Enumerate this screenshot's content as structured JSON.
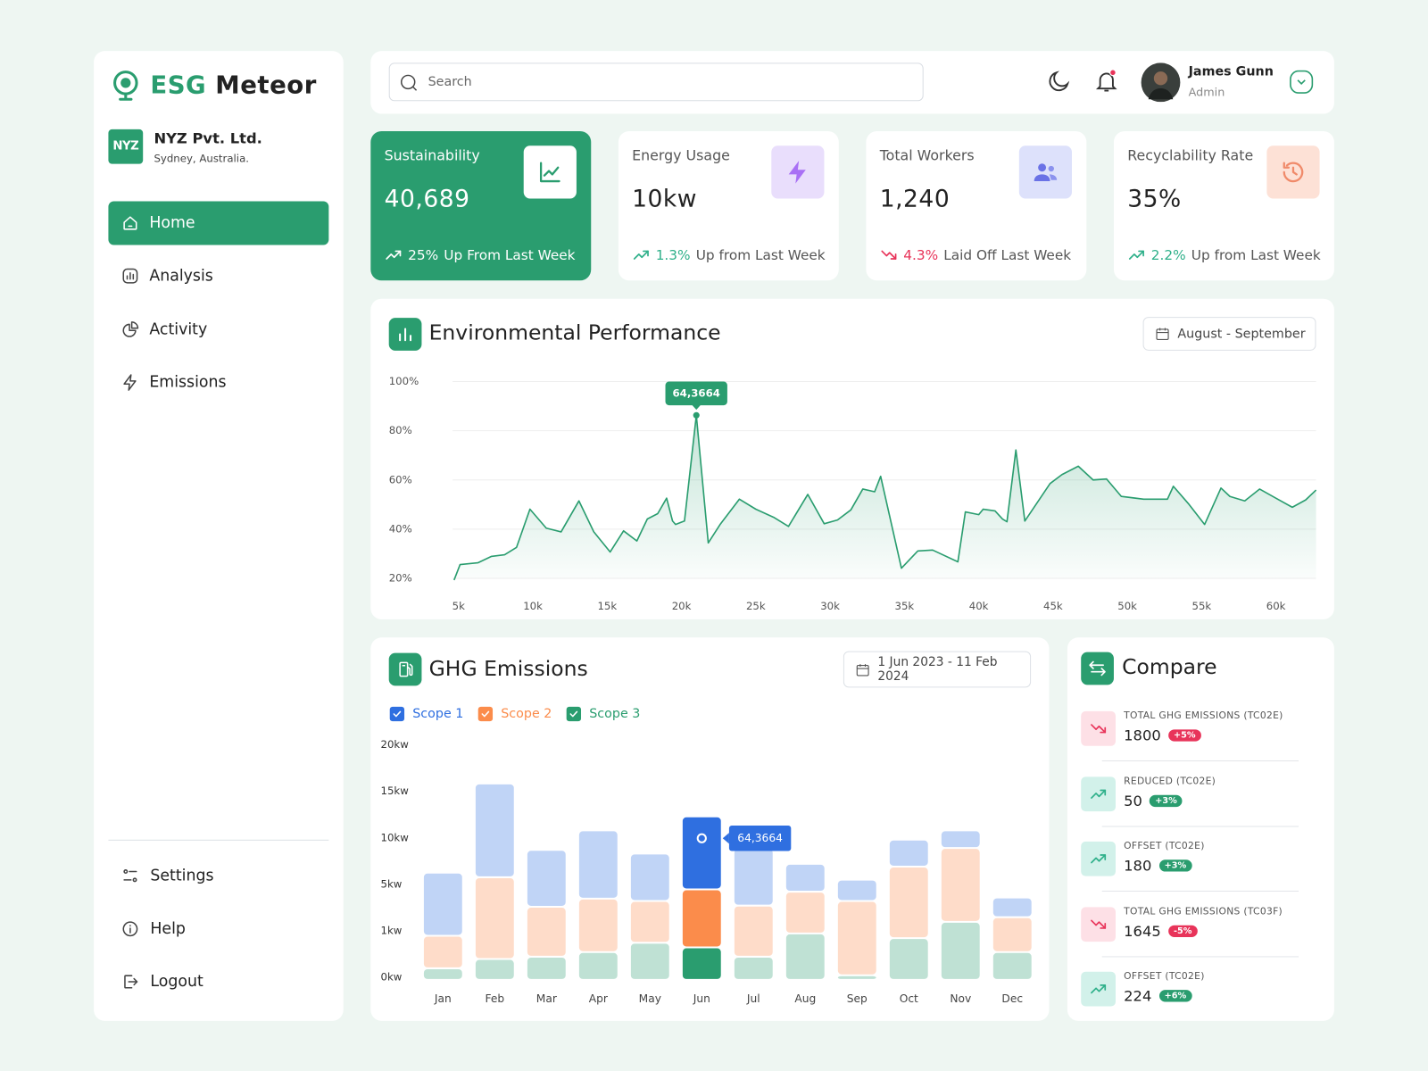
{
  "brand": {
    "accent": "ESG",
    "name": "Meteor"
  },
  "company": {
    "logo": "NYZ",
    "name": "NYZ Pvt. Ltd.",
    "location": "Sydney, Australia."
  },
  "nav": {
    "active": 0,
    "items": [
      "Home",
      "Analysis",
      "Activity",
      "Emissions"
    ]
  },
  "footer_nav": [
    "Settings",
    "Help",
    "Logout"
  ],
  "header": {
    "search": "Search",
    "user": {
      "name": "James Gunn",
      "role": "Admin"
    }
  },
  "stats": {
    "active": 0,
    "items": [
      {
        "title": "Sustainability",
        "value": "40,689",
        "change": "25%",
        "note": "Up From Last Week",
        "trend": "up"
      },
      {
        "title": "Energy Usage",
        "value": "10kw",
        "change": "1.3%",
        "note": "Up from Last Week",
        "trend": "up"
      },
      {
        "title": "Total Workers",
        "value": "1,240",
        "change": "4.3%",
        "note": "Laid Off Last Week",
        "trend": "down"
      },
      {
        "title": "Recyclability Rate",
        "value": "35%",
        "change": "2.2%",
        "note": "Up from Last Week",
        "trend": "up"
      }
    ]
  },
  "chart_data": [
    {
      "type": "line",
      "title": "Environmental Performance",
      "date_range": "August - September",
      "color": "#2a9d6f",
      "area": true,
      "grid": true,
      "x": [
        4700,
        5100,
        6300,
        7200,
        8100,
        8900,
        9800,
        10900,
        11900,
        13100,
        14100,
        15200,
        16100,
        17000,
        17700,
        18400,
        19000,
        19400,
        19600,
        20200,
        21000,
        21800,
        22600,
        23900,
        25000,
        26200,
        27200,
        28500,
        29600,
        30500,
        31400,
        32200,
        33000,
        33400,
        34800,
        35900,
        36900,
        38600,
        39100,
        40000,
        40300,
        41100,
        41600,
        41900,
        42500,
        43100,
        44800,
        45600,
        46700,
        47700,
        48600,
        49600,
        51100,
        52700,
        53100,
        54100,
        55200,
        56300,
        56900,
        57900,
        58900,
        60000,
        61100,
        62000,
        62700
      ],
      "values": [
        19.3,
        25.6,
        26.3,
        28.9,
        29.6,
        32.6,
        48.1,
        40.4,
        38.9,
        51.5,
        38.9,
        30.7,
        39.3,
        35.2,
        44.1,
        46.3,
        52.6,
        43.3,
        41.9,
        43.3,
        86.3,
        34.4,
        41.9,
        52.2,
        48.1,
        44.8,
        41.1,
        54.1,
        42.2,
        43.7,
        47.8,
        56.3,
        55.2,
        61.5,
        24.1,
        31.1,
        31.5,
        26.7,
        47.0,
        45.9,
        48.1,
        47.4,
        44.1,
        43.0,
        72.2,
        43.3,
        58.5,
        62.2,
        65.6,
        60.0,
        60.4,
        53.3,
        52.2,
        52.2,
        57.4,
        50.4,
        41.9,
        56.7,
        53.3,
        51.5,
        56.3,
        52.6,
        48.9,
        51.9,
        55.9
      ],
      "xlim": [
        4600,
        63000
      ],
      "xticks": [
        {
          "value": 5000,
          "label": "5k"
        },
        {
          "value": 10000,
          "label": "10k"
        },
        {
          "value": 15000,
          "label": "15k"
        },
        {
          "value": 20000,
          "label": "20k"
        },
        {
          "value": 25000,
          "label": "25k"
        },
        {
          "value": 30000,
          "label": "30k"
        },
        {
          "value": 35000,
          "label": "35k"
        },
        {
          "value": 40000,
          "label": "40k"
        },
        {
          "value": 45000,
          "label": "45k"
        },
        {
          "value": 50000,
          "label": "50k"
        },
        {
          "value": 55000,
          "label": "55k"
        },
        {
          "value": 60000,
          "label": "60k"
        }
      ],
      "ylim": [
        20,
        100
      ],
      "yticks": [
        {
          "value": 20,
          "label": "20%"
        },
        {
          "value": 40,
          "label": "40%"
        },
        {
          "value": 60,
          "label": "60%"
        },
        {
          "value": 80,
          "label": "80%"
        },
        {
          "value": 100,
          "label": "100%"
        }
      ],
      "annotation": {
        "text": "64,3664",
        "index": 20
      }
    },
    {
      "type": "stacked-bar",
      "title": "GHG Emissions",
      "date_range": "1 Jun 2023 - 11 Feb 2024",
      "categories": [
        "Jan",
        "Feb",
        "Mar",
        "Apr",
        "May",
        "Jun",
        "Jul",
        "Aug",
        "Sep",
        "Oct",
        "Nov",
        "Dec"
      ],
      "series": [
        {
          "name": "Scope 1",
          "color": "#2f6fe0",
          "values": [
            5.6,
            10.1,
            5.7,
            7.1,
            4.8,
            7.8,
            5.8,
            2.9,
            2.0,
            2.9,
            1.9,
            1.7
          ]
        },
        {
          "name": "Scope 2",
          "color": "#fb8c4b",
          "values": [
            0.7,
            5.6,
            2.8,
            3.4,
            3.0,
            4.1,
            2.9,
            3.6,
            3.7,
            6.3,
            7.2,
            1.8
          ]
        },
        {
          "name": "Scope 3",
          "color": "#2a9d6f",
          "values": [
            0.25,
            0.45,
            0.5,
            0.6,
            0.8,
            0.7,
            0.5,
            1.0,
            0.1,
            0.9,
            2.0,
            0.6
          ]
        }
      ],
      "ylim": [
        0,
        20
      ],
      "yticks": [
        {
          "value": 0,
          "label": "0kw"
        },
        {
          "value": 1,
          "label": "1kw"
        },
        {
          "value": 5,
          "label": "5kw"
        },
        {
          "value": 10,
          "label": "10kw"
        },
        {
          "value": 15,
          "label": "15kw"
        },
        {
          "value": 20,
          "label": "20kw"
        }
      ],
      "yscale": "tick-spaced",
      "annotation": {
        "text": "64,3664",
        "index": 5
      }
    }
  ],
  "compare": {
    "title": "Compare",
    "items": [
      {
        "label": "TOTAL GHG EMISSIONS (TC02E)",
        "value": 1800,
        "change": "+5%",
        "trend": "down"
      },
      {
        "label": "REDUCED (TC02E)",
        "value": 50,
        "change": "+3%",
        "trend": "up"
      },
      {
        "label": "OFFSET (TC02E)",
        "value": 180,
        "change": "+3%",
        "trend": "up"
      },
      {
        "label": "TOTAL GHG EMISSIONS (TC03F)",
        "value": 1645,
        "change": "-5%",
        "trend": "down"
      },
      {
        "label": "OFFSET (TC02E)",
        "value": 224,
        "change": "+6%",
        "trend": "up"
      }
    ]
  }
}
